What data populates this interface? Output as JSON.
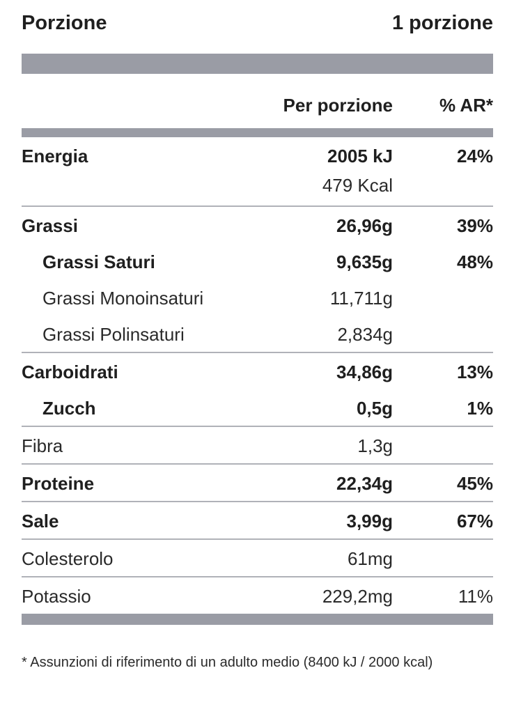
{
  "serving": {
    "label": "Porzione",
    "value": "1 porzione"
  },
  "table_header": {
    "per_serving": "Per porzione",
    "ar": "% AR*"
  },
  "groups": [
    {
      "rows": [
        {
          "name": "Energia",
          "amount": "2005 kJ",
          "ar": "24%",
          "extra_amount": "479 Kcal"
        }
      ]
    },
    {
      "rows": [
        {
          "name": "Grassi",
          "amount": "26,96g",
          "ar": "39%"
        },
        {
          "name": "Grassi Saturi",
          "amount": "9,635g",
          "ar": "48%"
        },
        {
          "name": "Grassi Monoinsaturi",
          "amount": "11,711g",
          "ar": ""
        },
        {
          "name": "Grassi Polinsaturi",
          "amount": "2,834g",
          "ar": ""
        }
      ]
    },
    {
      "rows": [
        {
          "name": "Carboidrati",
          "amount": "34,86g",
          "ar": "13%"
        },
        {
          "name": "Zucch",
          "amount": "0,5g",
          "ar": "1%"
        }
      ]
    },
    {
      "rows": [
        {
          "name": "Fibra",
          "amount": "1,3g",
          "ar": ""
        }
      ]
    },
    {
      "rows": [
        {
          "name": "Proteine",
          "amount": "22,34g",
          "ar": "45%"
        }
      ]
    },
    {
      "rows": [
        {
          "name": "Sale",
          "amount": "3,99g",
          "ar": "67%"
        }
      ]
    },
    {
      "rows": [
        {
          "name": "Colesterolo",
          "amount": "61mg",
          "ar": ""
        }
      ]
    },
    {
      "rows": [
        {
          "name": "Potassio",
          "amount": "229,2mg",
          "ar": "11%"
        }
      ]
    }
  ],
  "footnote": "* Assunzioni di riferimento di un adulto medio (8400 kJ / 2000 kcal)",
  "colors": {
    "bar": "#9a9ca5",
    "divider": "#b0b2b8",
    "text": "#1f1f1f"
  }
}
